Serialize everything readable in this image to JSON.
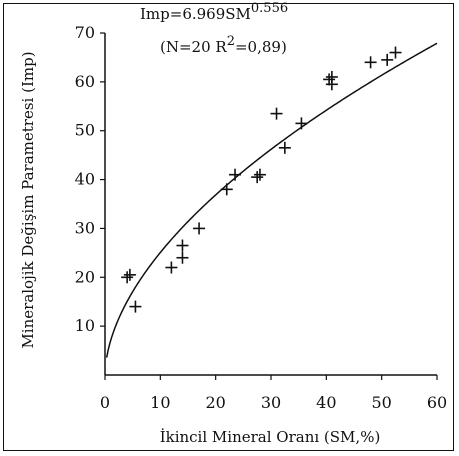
{
  "chart_data": {
    "type": "scatter",
    "title": "",
    "equation": {
      "base": "Imp=6.969SM",
      "exponent": "0.556",
      "stats_prefix": "(N=20   R",
      "stats_exp": "2",
      "stats_suffix": "=0,89)"
    },
    "xlabel": "İkincil Mineral Oranı (SM,%)",
    "ylabel": "Mineralojik Değişim Parametresi (Imp)",
    "xlim": [
      0,
      60
    ],
    "ylim": [
      0,
      70
    ],
    "xticks": [
      "0",
      "10",
      "20",
      "30",
      "40",
      "50",
      "60"
    ],
    "yticks": [
      "10",
      "20",
      "30",
      "40",
      "50",
      "60",
      "70"
    ],
    "grid": false,
    "marker": "+",
    "series": [
      {
        "x": [
          4,
          4.5,
          5.5,
          12,
          14,
          14,
          17,
          22,
          23.5,
          27.5,
          28,
          31,
          32.5,
          35.5,
          40.5,
          41,
          41,
          48,
          51,
          52.5
        ],
        "y": [
          20,
          20.5,
          14,
          22,
          24,
          26.5,
          30,
          38,
          41,
          40.5,
          41,
          53.5,
          46.5,
          51.5,
          60.5,
          61,
          59.5,
          64,
          64.5,
          66
        ]
      }
    ],
    "fit": {
      "a": 6.969,
      "b": 0.556,
      "x_range": [
        0,
        60
      ]
    }
  }
}
